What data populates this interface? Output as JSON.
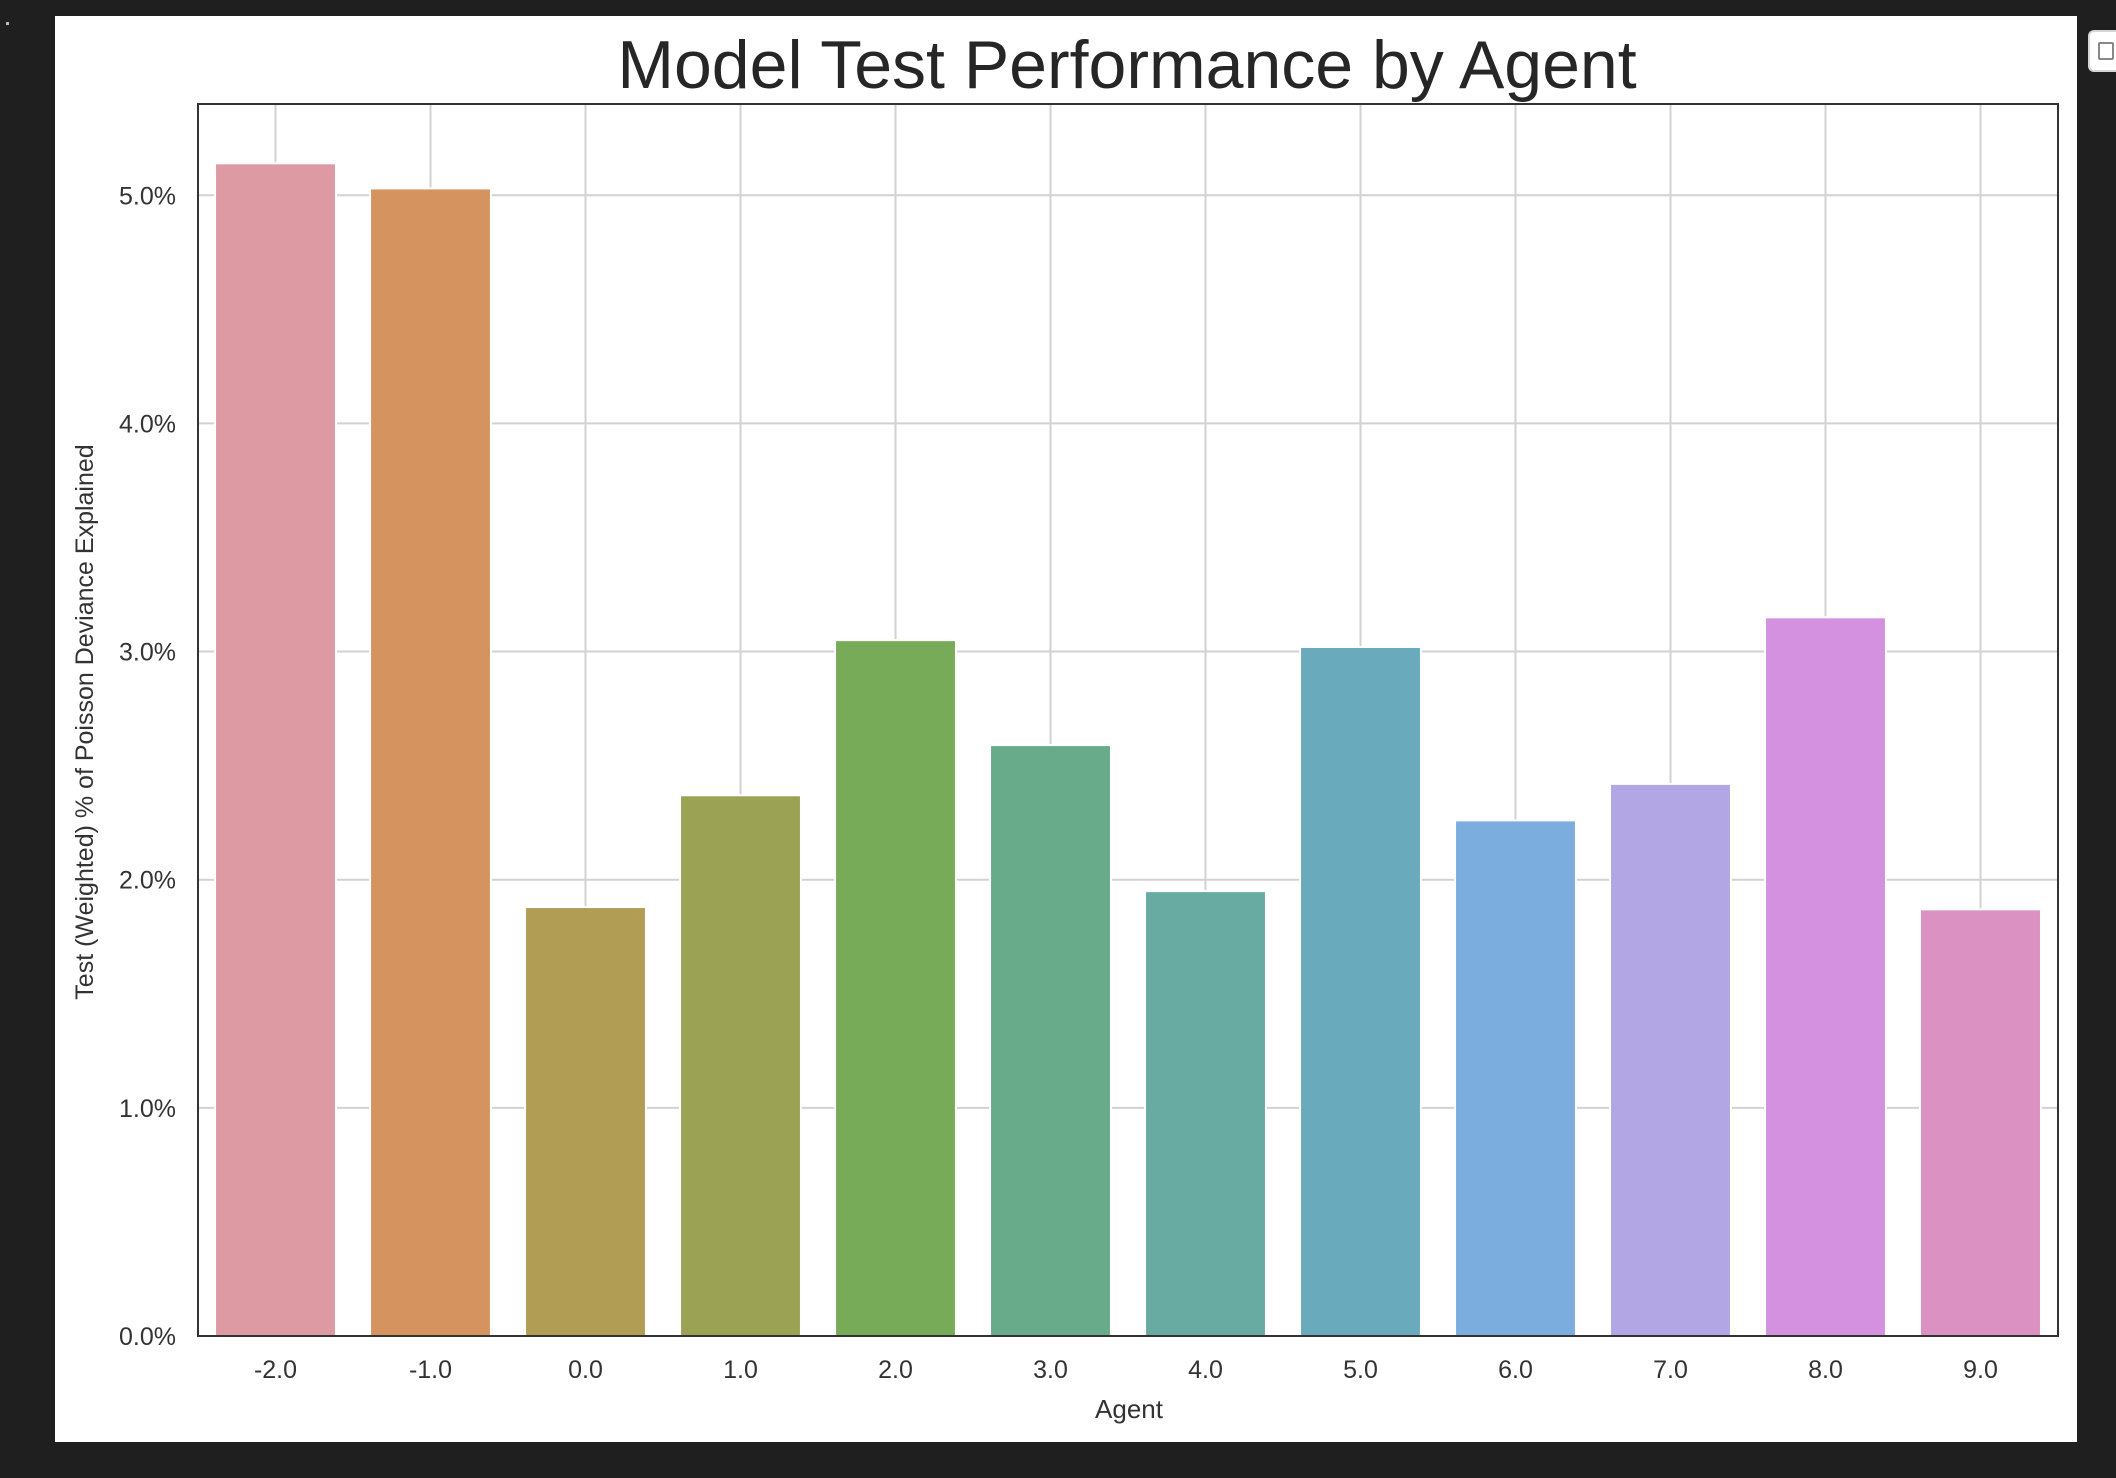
{
  "chart_data": {
    "type": "bar",
    "title": "Model Test Performance by Agent",
    "xlabel": "Agent",
    "ylabel": "Test (Weighted) % of Poisson Deviance Explained",
    "categories": [
      "-2.0",
      "-1.0",
      "0.0",
      "1.0",
      "2.0",
      "3.0",
      "4.0",
      "5.0",
      "6.0",
      "7.0",
      "8.0",
      "9.0"
    ],
    "values": [
      5.14,
      5.03,
      1.88,
      2.37,
      3.05,
      2.59,
      1.95,
      3.02,
      2.26,
      2.42,
      3.15,
      1.87
    ],
    "colors": [
      "#dd9aa2",
      "#d5945f",
      "#b19d54",
      "#9ba253",
      "#77ab57",
      "#67ab8a",
      "#67aba3",
      "#69aabd",
      "#7badde",
      "#b3a6e4",
      "#d391df",
      "#db91c1"
    ],
    "ylim": [
      0,
      5.4
    ],
    "yticks": [
      "0.0%",
      "1.0%",
      "2.0%",
      "3.0%",
      "4.0%",
      "5.0%"
    ],
    "ytick_values": [
      0,
      1,
      2,
      3,
      4,
      5
    ],
    "grid": true
  }
}
